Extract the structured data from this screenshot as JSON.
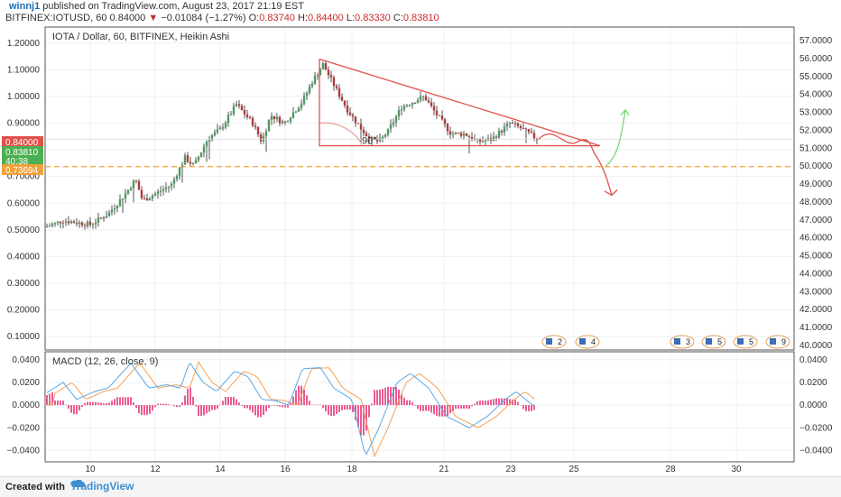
{
  "header": {
    "user": "winnj1",
    "published": "published on TradingView.com, August 23, 2017 21:19 EST",
    "symbol": "BITFINEX:IOTUSD, 60",
    "last": "0.84000",
    "change": "−0.01084 (−1.27%)",
    "o_label": "O:",
    "o_val": "0.83740",
    "h_label": "H:",
    "h_val": "0.84400",
    "l_label": "L:",
    "l_val": "0.83330",
    "c_label": "C:",
    "c_val": "0.83810"
  },
  "footer": {
    "created": "Created with",
    "brand": "TradingView"
  },
  "chart_data": [
    {
      "type": "candlestick",
      "title": "IOTA / Dollar, 60, BITFINEX, Heikin Ashi",
      "y_left_ticks": [
        "1.20000",
        "1.10000",
        "1.00000",
        "0.90000",
        "0.80000",
        "0.70000",
        "0.60000",
        "0.50000",
        "0.40000",
        "0.30000",
        "0.20000",
        "0.10000"
      ],
      "y_left_values": [
        1.2,
        1.1,
        1.0,
        0.9,
        0.8,
        0.7,
        0.6,
        0.5,
        0.4,
        0.3,
        0.2,
        0.1
      ],
      "y_right_ticks": [
        "57.0000",
        "56.0000",
        "55.0000",
        "54.0000",
        "53.0000",
        "52.0000",
        "51.0000",
        "50.0000",
        "49.0000",
        "48.0000",
        "47.0000",
        "46.0000",
        "45.0000",
        "44.0000",
        "43.0000",
        "42.0000",
        "41.0000",
        "40.0000"
      ],
      "y_right_values": [
        57,
        56,
        55,
        54,
        53,
        52,
        51,
        50,
        49,
        48,
        47,
        46,
        45,
        44,
        43,
        42,
        41,
        40
      ],
      "ylim": [
        0.05,
        1.26
      ],
      "x_ticks": [
        "10",
        "12",
        "14",
        "16",
        "18",
        "21",
        "23",
        "25",
        "28",
        "30"
      ],
      "price_labels": [
        {
          "text": "0.84000",
          "value": 0.84,
          "color": "#e0524a"
        },
        {
          "text": "0.83810",
          "value": 0.8381,
          "color": "#4caf50"
        },
        {
          "text": "40:38",
          "value": 0.8,
          "color": "#4caf50"
        },
        {
          "text": "0.73694",
          "value": 0.73694,
          "color": "#f0a23a"
        }
      ],
      "hline": {
        "value": 0.73694,
        "color": "#f0a23a",
        "style": "dashed"
      },
      "grid": true,
      "candles": [],
      "annotations": [
        {
          "type": "triangle",
          "color": "#e0524a",
          "points": [
            [
              "Aug 17",
              1.14
            ],
            [
              "Aug 17",
              0.815
            ],
            [
              "Aug 25",
              0.815
            ]
          ]
        },
        {
          "type": "text",
          "text": "90°",
          "color": "#e0524a"
        },
        {
          "type": "freehand-arrow",
          "color": "#e0524a",
          "direction": "down"
        },
        {
          "type": "freehand-arrow",
          "color": "#6ad66a",
          "direction": "up"
        }
      ],
      "event_badges": [
        {
          "text": "2",
          "x": "Aug 24"
        },
        {
          "text": "4",
          "x": "Aug 25"
        },
        {
          "text": "3",
          "x": "Aug 28"
        },
        {
          "text": "5",
          "x": "Aug 29"
        },
        {
          "text": "5",
          "x": "Aug 30"
        },
        {
          "text": "9",
          "x": "Aug 31"
        }
      ]
    },
    {
      "type": "line+bar",
      "title": "MACD (12, 26, close, 9)",
      "y_ticks": [
        "0.0400",
        "0.0200",
        "0.0000",
        "−0.0200",
        "−0.0400"
      ],
      "y_values": [
        0.04,
        0.02,
        0.0,
        -0.02,
        -0.04
      ],
      "ylim": [
        -0.05,
        0.047
      ],
      "series": [
        {
          "name": "MACD",
          "color": "#5aa8e8",
          "values": []
        },
        {
          "name": "Signal",
          "color": "#f5a053",
          "values": []
        },
        {
          "name": "Histogram",
          "color": "#e8337a",
          "values": []
        }
      ]
    }
  ]
}
